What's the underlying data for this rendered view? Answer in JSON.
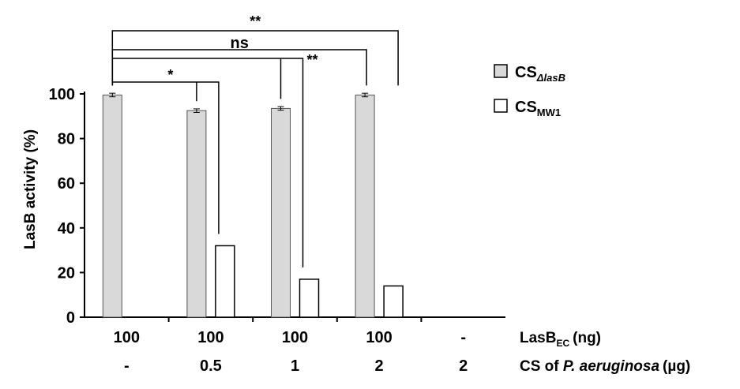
{
  "chart_data": {
    "type": "bar",
    "ylabel": "LasB activity (%)",
    "ylim": [
      0,
      100
    ],
    "yticks": [
      0,
      20,
      40,
      60,
      80,
      100
    ],
    "groups": [
      {
        "lasb_ec": "100",
        "cs_amount": "-"
      },
      {
        "lasb_ec": "100",
        "cs_amount": "0.5"
      },
      {
        "lasb_ec": "100",
        "cs_amount": "1"
      },
      {
        "lasb_ec": "100",
        "cs_amount": "2"
      },
      {
        "lasb_ec": "-",
        "cs_amount": "2"
      }
    ],
    "row_labels": {
      "lasb_base": "LasB",
      "lasb_sub": "EC",
      "lasb_unit": "(ng)",
      "cs_prefix": "CS of ",
      "cs_species": "P. aeruginosa",
      "cs_unit": "(µg)"
    },
    "series": [
      {
        "name_base": "CS",
        "name_sub": "ΔlasB",
        "color": "#d9d9d9",
        "values": [
          99.5,
          92.5,
          93.5,
          99.5,
          null
        ],
        "errors": [
          0.8,
          0.8,
          0.8,
          0.8,
          null
        ]
      },
      {
        "name_base": "CS",
        "name_sub": "MW1",
        "color": "#ffffff",
        "values": [
          null,
          32,
          17,
          14,
          null
        ],
        "errors": [
          null,
          null,
          null,
          null,
          null
        ]
      }
    ],
    "significance": [
      {
        "label": "*",
        "from_group": 0,
        "to_group": 1
      },
      {
        "label": "**",
        "from_group": 0,
        "to_group": 2
      },
      {
        "label": "ns",
        "from_group": 0,
        "to_group": 3
      },
      {
        "label": "**",
        "from_group": 0,
        "to_group": 3
      }
    ]
  }
}
